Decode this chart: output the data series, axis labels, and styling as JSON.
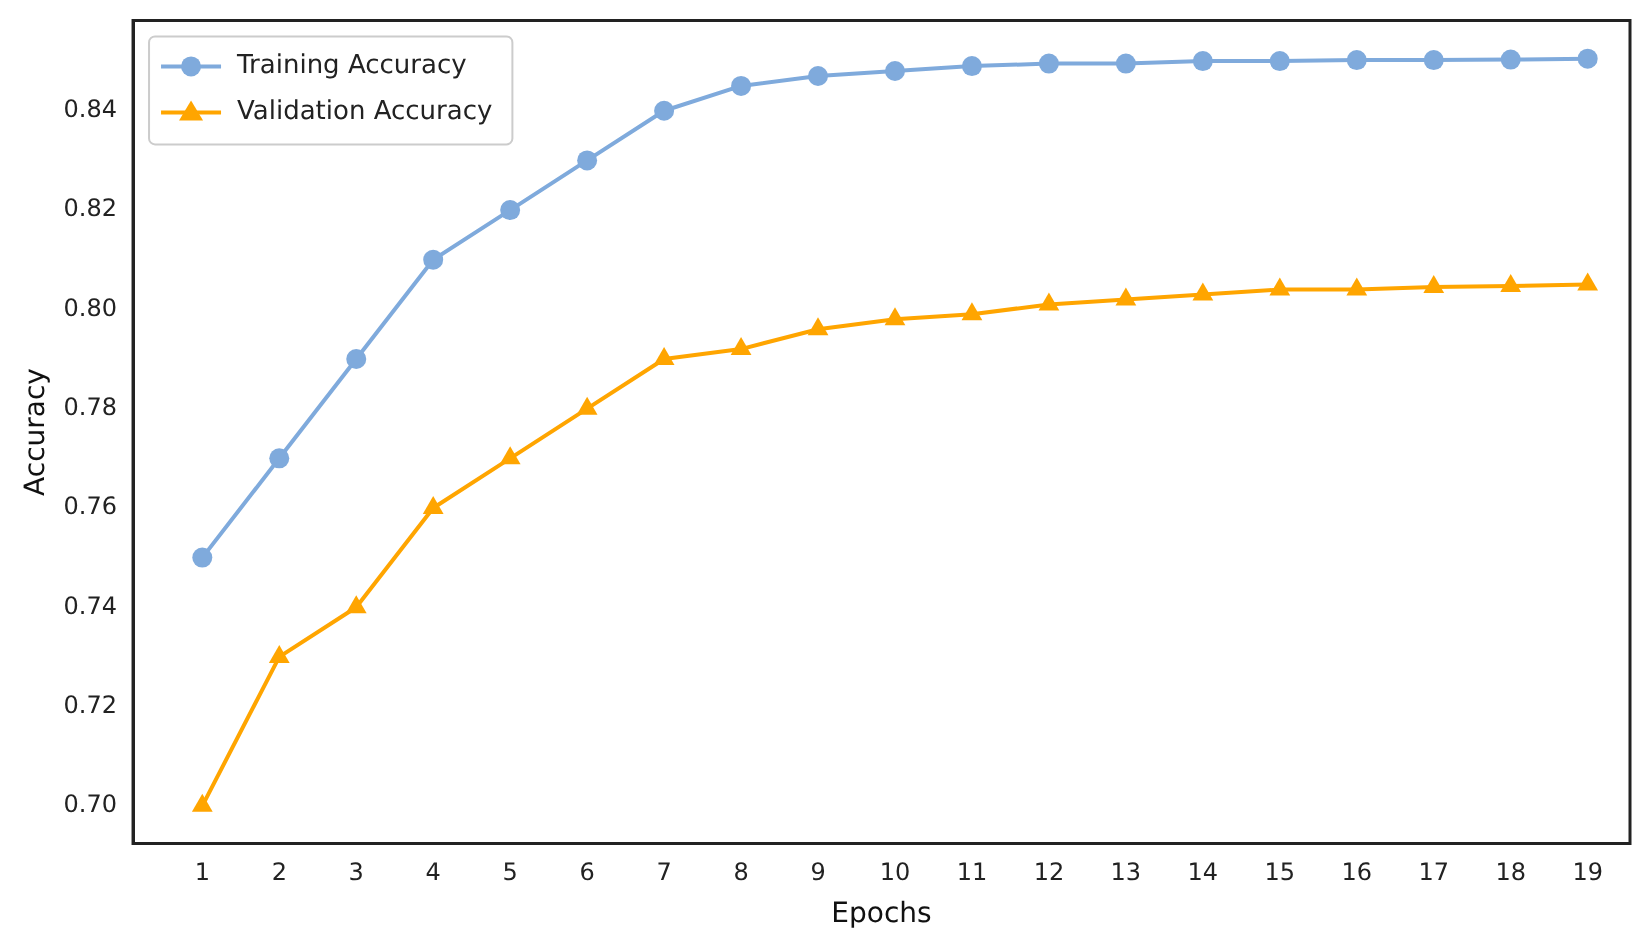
{
  "chart_data": {
    "type": "line",
    "xlabel": "Epochs",
    "ylabel": "Accuracy",
    "x": [
      1,
      2,
      3,
      4,
      5,
      6,
      7,
      8,
      9,
      10,
      11,
      12,
      13,
      14,
      15,
      16,
      17,
      18,
      19
    ],
    "series": [
      {
        "name": "Training Accuracy",
        "color": "#7faadc",
        "marker": "circle",
        "values": [
          0.75,
          0.77,
          0.79,
          0.81,
          0.82,
          0.83,
          0.84,
          0.845,
          0.847,
          0.848,
          0.849,
          0.8495,
          0.8495,
          0.85,
          0.85,
          0.8502,
          0.8502,
          0.8503,
          0.8505
        ]
      },
      {
        "name": "Validation Accuracy",
        "color": "#ffa500",
        "marker": "triangle",
        "values": [
          0.7,
          0.73,
          0.74,
          0.76,
          0.77,
          0.78,
          0.79,
          0.792,
          0.796,
          0.798,
          0.799,
          0.801,
          0.802,
          0.803,
          0.804,
          0.804,
          0.8045,
          0.8047,
          0.805
        ]
      }
    ],
    "xlim": [
      0.1,
      19.55
    ],
    "xticks": [
      1,
      2,
      3,
      4,
      5,
      6,
      7,
      8,
      9,
      10,
      11,
      12,
      13,
      14,
      15,
      16,
      17,
      18,
      19
    ],
    "ylim": [
      0.6924,
      0.8582
    ],
    "yticks": [
      {
        "value": 0.7,
        "label": "0.70"
      },
      {
        "value": 0.72,
        "label": "0.72"
      },
      {
        "value": 0.74,
        "label": "0.74"
      },
      {
        "value": 0.76,
        "label": "0.76"
      },
      {
        "value": 0.78,
        "label": "0.78"
      },
      {
        "value": 0.8,
        "label": "0.80"
      },
      {
        "value": 0.82,
        "label": "0.82"
      },
      {
        "value": 0.84,
        "label": "0.84"
      }
    ],
    "grid": false,
    "legend": "top left",
    "line_style": "solid"
  }
}
